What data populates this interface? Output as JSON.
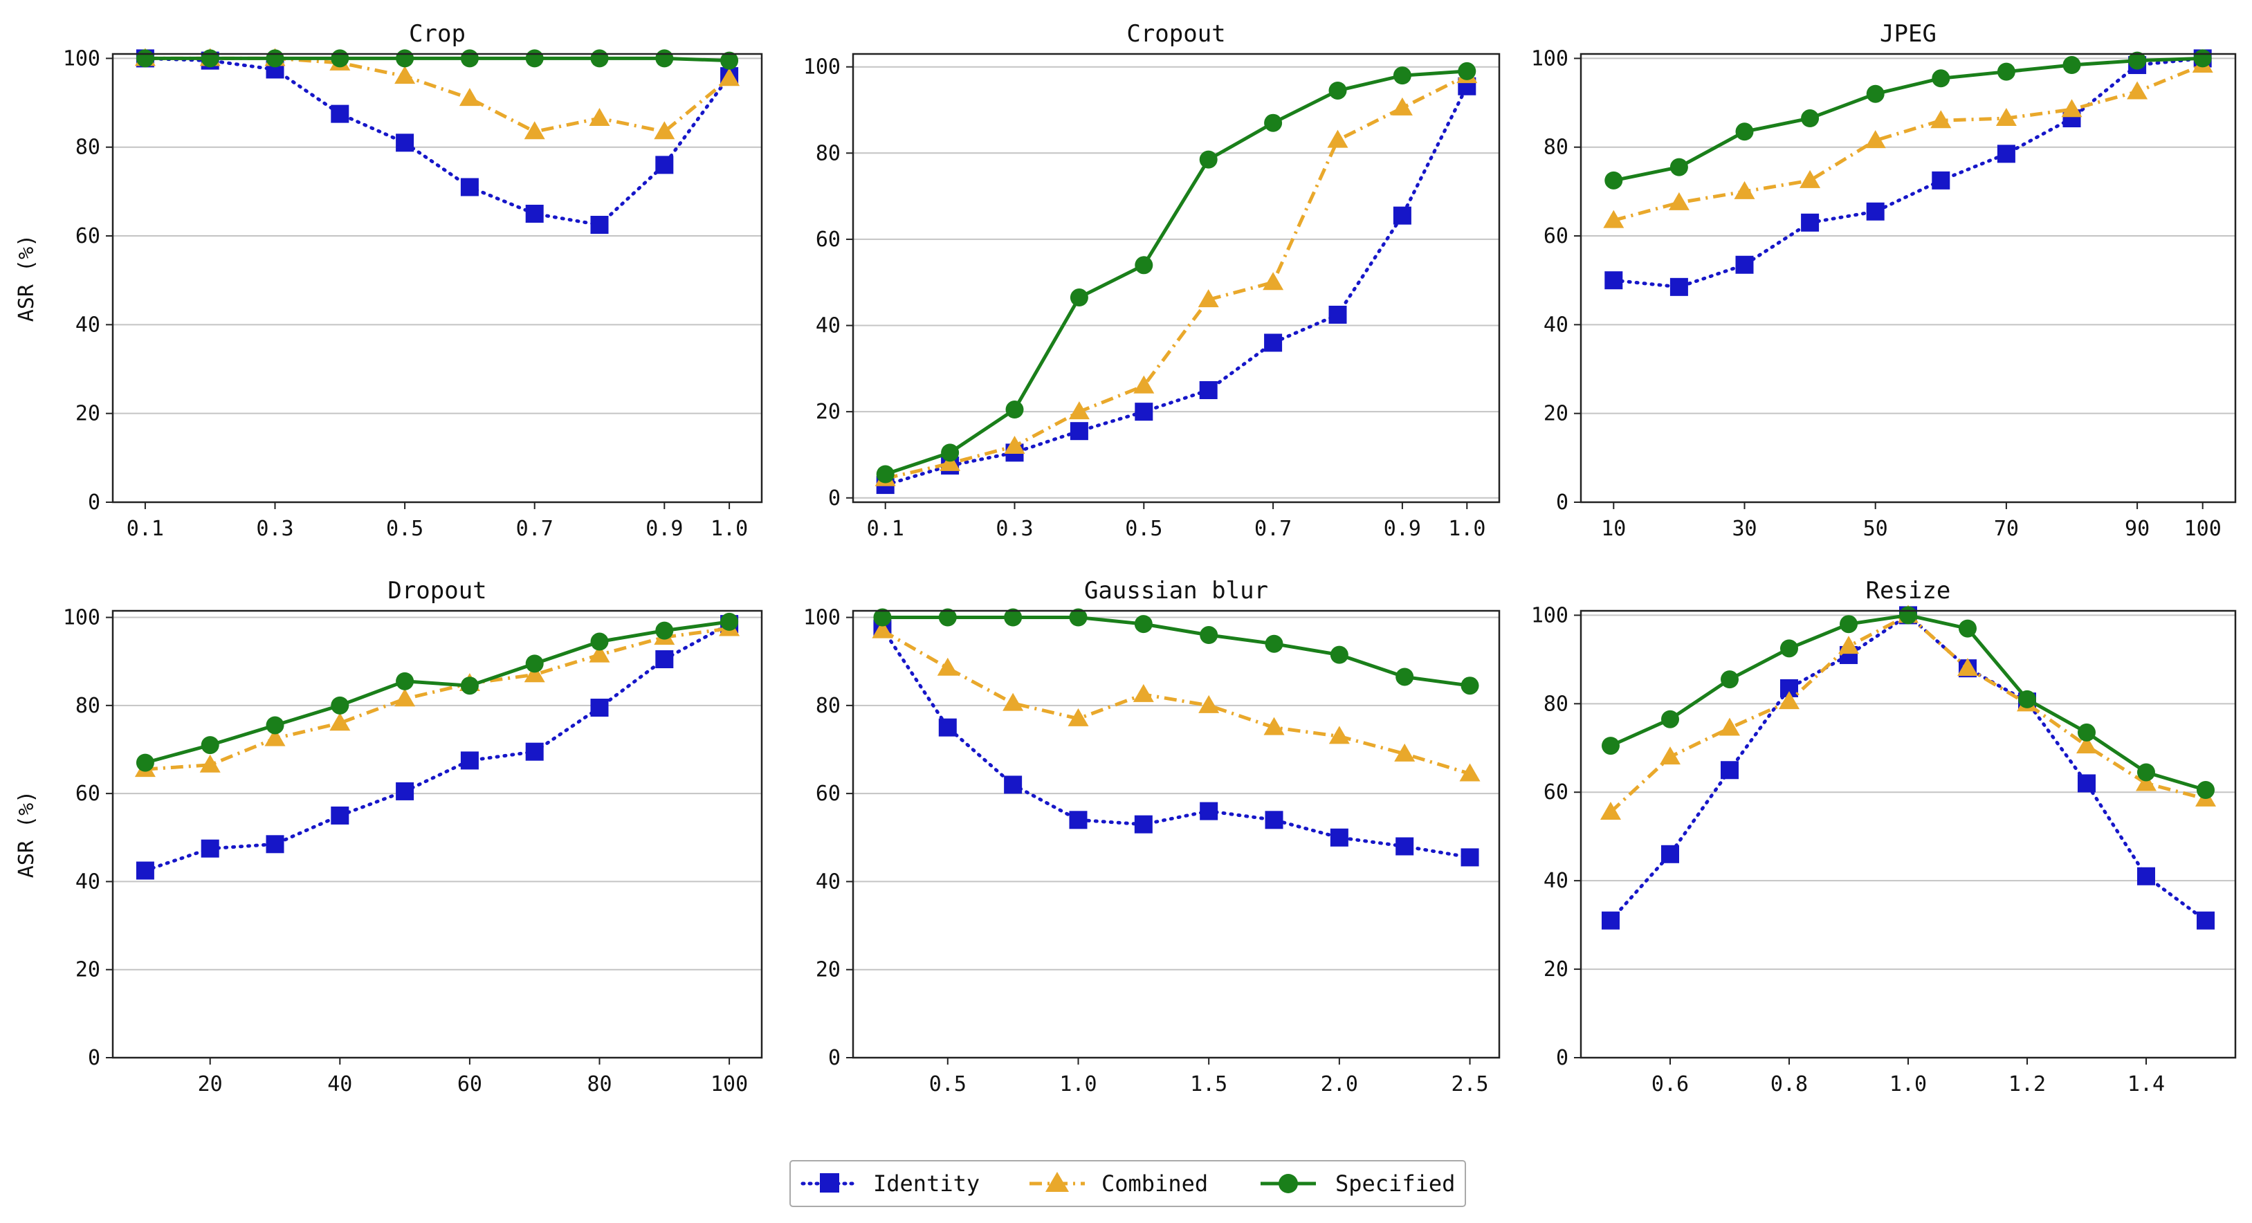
{
  "chart_data": [
    {
      "type": "line",
      "title": "Crop",
      "ylabel": "ASR (%)",
      "xlabel": "",
      "x": [
        0.1,
        0.2,
        0.3,
        0.4,
        0.5,
        0.6,
        0.7,
        0.8,
        0.9,
        1.0
      ],
      "xlim": [
        0.05,
        1.05
      ],
      "xticks": [
        0.1,
        0.3,
        0.5,
        0.7,
        0.9,
        1.0
      ],
      "xtick_labels": [
        "0.1",
        "0.3",
        "0.5",
        "0.7",
        "0.9",
        "1.0"
      ],
      "ylim": [
        0,
        101
      ],
      "yticks": [
        0,
        20,
        40,
        60,
        80,
        100
      ],
      "ytick_labels": [
        "0",
        "20",
        "40",
        "60",
        "80",
        "100"
      ],
      "series": [
        {
          "name": "Identity",
          "values": [
            100,
            99.5,
            97.5,
            87.5,
            81,
            71,
            65,
            62.5,
            76,
            96
          ]
        },
        {
          "name": "Combined",
          "values": [
            100,
            100,
            100,
            99,
            96,
            91,
            83.5,
            86.5,
            83.5,
            95.5
          ]
        },
        {
          "name": "Specified",
          "values": [
            100,
            100,
            100,
            100,
            100,
            100,
            100,
            100,
            100,
            99.5
          ]
        }
      ]
    },
    {
      "type": "line",
      "title": "Cropout",
      "ylabel": "",
      "xlabel": "",
      "x": [
        0.1,
        0.2,
        0.3,
        0.4,
        0.5,
        0.6,
        0.7,
        0.8,
        0.9,
        1.0
      ],
      "xlim": [
        0.05,
        1.05
      ],
      "xticks": [
        0.1,
        0.3,
        0.5,
        0.7,
        0.9,
        1.0
      ],
      "xtick_labels": [
        "0.1",
        "0.3",
        "0.5",
        "0.7",
        "0.9",
        "1.0"
      ],
      "ylim": [
        -1,
        103
      ],
      "yticks": [
        0,
        20,
        40,
        60,
        80,
        100
      ],
      "ytick_labels": [
        "0",
        "20",
        "40",
        "60",
        "80",
        "100"
      ],
      "series": [
        {
          "name": "Identity",
          "values": [
            3,
            7.5,
            10.5,
            15.5,
            20,
            25,
            36,
            42.5,
            65.5,
            95.5
          ]
        },
        {
          "name": "Combined",
          "values": [
            4.5,
            8,
            12,
            20,
            26,
            46,
            50,
            83,
            90.5,
            98
          ]
        },
        {
          "name": "Specified",
          "values": [
            5.5,
            10.5,
            20.5,
            46.5,
            54,
            78.5,
            87,
            94.5,
            98,
            99
          ]
        }
      ]
    },
    {
      "type": "line",
      "title": "JPEG",
      "ylabel": "",
      "xlabel": "",
      "x": [
        10,
        20,
        30,
        40,
        50,
        60,
        70,
        80,
        90,
        100
      ],
      "xlim": [
        5,
        105
      ],
      "xticks": [
        10,
        30,
        50,
        70,
        90,
        100
      ],
      "xtick_labels": [
        "10",
        "30",
        "50",
        "70",
        "90",
        "100"
      ],
      "ylim": [
        0,
        101
      ],
      "yticks": [
        0,
        20,
        40,
        60,
        80,
        100
      ],
      "ytick_labels": [
        "0",
        "20",
        "40",
        "60",
        "80",
        "100"
      ],
      "series": [
        {
          "name": "Identity",
          "values": [
            50,
            48.5,
            53.5,
            63,
            65.5,
            72.5,
            78.5,
            86.5,
            98.5,
            100
          ]
        },
        {
          "name": "Combined",
          "values": [
            63.5,
            67.5,
            70,
            72.5,
            81.5,
            86,
            86.5,
            88.5,
            92.5,
            98.5
          ]
        },
        {
          "name": "Specified",
          "values": [
            72.5,
            75.5,
            83.5,
            86.5,
            92,
            95.5,
            97,
            98.5,
            99.5,
            100
          ]
        }
      ]
    },
    {
      "type": "line",
      "title": "Dropout",
      "ylabel": "ASR (%)",
      "xlabel": "",
      "x": [
        10,
        20,
        30,
        40,
        50,
        60,
        70,
        80,
        90,
        100
      ],
      "xlim": [
        5,
        105
      ],
      "xticks": [
        20,
        40,
        60,
        80,
        100
      ],
      "xtick_labels": [
        "20",
        "40",
        "60",
        "80",
        "100"
      ],
      "ylim": [
        0,
        101.5
      ],
      "yticks": [
        0,
        20,
        40,
        60,
        80,
        100
      ],
      "ytick_labels": [
        "0",
        "20",
        "40",
        "60",
        "80",
        "100"
      ],
      "series": [
        {
          "name": "Identity",
          "values": [
            42.5,
            47.5,
            48.5,
            55,
            60.5,
            67.5,
            69.5,
            79.5,
            90.5,
            98.5
          ]
        },
        {
          "name": "Combined",
          "values": [
            65.5,
            66.5,
            72.5,
            76,
            81.5,
            85,
            87,
            91.5,
            95.5,
            97.5
          ]
        },
        {
          "name": "Specified",
          "values": [
            67,
            71,
            75.5,
            80,
            85.5,
            84.5,
            89.5,
            94.5,
            97,
            99
          ]
        }
      ]
    },
    {
      "type": "line",
      "title": "Gaussian blur",
      "ylabel": "",
      "xlabel": "",
      "x": [
        0.25,
        0.5,
        0.75,
        1.0,
        1.25,
        1.5,
        1.75,
        2.0,
        2.25,
        2.5
      ],
      "xlim": [
        0.1375,
        2.6125
      ],
      "xticks": [
        0.5,
        1.0,
        1.5,
        2.0,
        2.5
      ],
      "xtick_labels": [
        "0.5",
        "1.0",
        "1.5",
        "2.0",
        "2.5"
      ],
      "ylim": [
        0,
        101.5
      ],
      "yticks": [
        0,
        20,
        40,
        60,
        80,
        100
      ],
      "ytick_labels": [
        "0",
        "20",
        "40",
        "60",
        "80",
        "100"
      ],
      "series": [
        {
          "name": "Identity",
          "values": [
            97.5,
            75,
            62,
            54,
            53,
            56,
            54,
            50,
            48,
            45.5
          ]
        },
        {
          "name": "Combined",
          "values": [
            97,
            88.5,
            80.5,
            77,
            82.5,
            80,
            75,
            73,
            69,
            64.5
          ]
        },
        {
          "name": "Specified",
          "values": [
            100,
            100,
            100,
            100,
            98.5,
            96,
            94,
            91.5,
            86.5,
            84.5
          ]
        }
      ]
    },
    {
      "type": "line",
      "title": "Resize",
      "ylabel": "",
      "xlabel": "",
      "x": [
        0.5,
        0.6,
        0.7,
        0.8,
        0.9,
        1.0,
        1.1,
        1.2,
        1.3,
        1.4,
        1.5
      ],
      "xlim": [
        0.45,
        1.55
      ],
      "xticks": [
        0.6,
        0.8,
        1.0,
        1.2,
        1.4
      ],
      "xtick_labels": [
        "0.6",
        "0.8",
        "1.0",
        "1.2",
        "1.4"
      ],
      "ylim": [
        0,
        101
      ],
      "yticks": [
        0,
        20,
        40,
        60,
        80,
        100
      ],
      "ytick_labels": [
        "0",
        "20",
        "40",
        "60",
        "80",
        "100"
      ],
      "series": [
        {
          "name": "Identity",
          "values": [
            31,
            46,
            65,
            83.5,
            91,
            100,
            88,
            80.5,
            62,
            41,
            31
          ]
        },
        {
          "name": "Combined",
          "values": [
            55.5,
            68,
            74.5,
            80.5,
            93,
            100,
            88,
            80,
            70.5,
            62,
            58.5
          ]
        },
        {
          "name": "Specified",
          "values": [
            70.5,
            76.5,
            85.5,
            92.5,
            98,
            100,
            97,
            81,
            73.5,
            64.5,
            60.5
          ]
        }
      ]
    }
  ],
  "legend": {
    "position": "bottom-center",
    "entries": [
      {
        "name": "Identity",
        "label": "Identity",
        "color": "#1616c8",
        "marker": "square",
        "linestyle": "dotted"
      },
      {
        "name": "Combined",
        "label": "Combined",
        "color": "#e9a82b",
        "marker": "triangle",
        "linestyle": "dashdot"
      },
      {
        "name": "Specified",
        "label": "Specified",
        "color": "#1a7f1a",
        "marker": "circle",
        "linestyle": "solid"
      }
    ]
  },
  "grid": "horizontal"
}
